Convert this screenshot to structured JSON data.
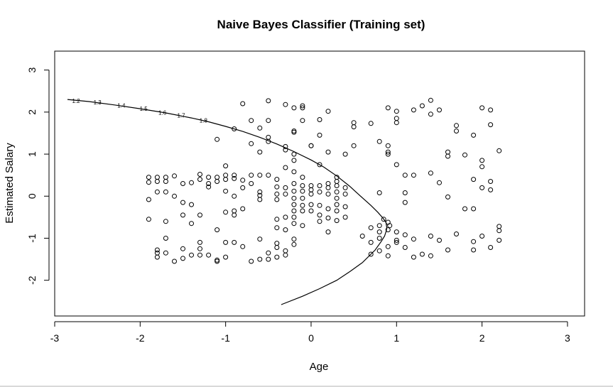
{
  "chart_data": {
    "type": "scatter",
    "title": "Naive Bayes  Classifier (Training set)",
    "xlabel": "Age",
    "ylabel": "Estimated Salary",
    "xlim": [
      -3.0,
      3.2
    ],
    "ylim": [
      -2.85,
      3.45
    ],
    "xticks": [
      -3,
      -2,
      -1,
      0,
      1,
      2,
      3
    ],
    "yticks": [
      -2,
      -1,
      0,
      1,
      2,
      3
    ],
    "grid": false,
    "legend": "none",
    "colors": {
      "points": "#000000",
      "contour": "#000000",
      "axis": "#000000"
    },
    "points": [
      [
        -1.9,
        0.45
      ],
      [
        -1.9,
        0.33
      ],
      [
        -1.8,
        0.45
      ],
      [
        -1.8,
        0.35
      ],
      [
        -1.7,
        0.45
      ],
      [
        -1.7,
        0.35
      ],
      [
        -1.6,
        0.48
      ],
      [
        -1.5,
        0.3
      ],
      [
        -1.4,
        0.32
      ],
      [
        -1.3,
        0.52
      ],
      [
        -1.3,
        0.4
      ],
      [
        -1.2,
        0.45
      ],
      [
        -1.2,
        0.3
      ],
      [
        -1.1,
        0.45
      ],
      [
        -1.1,
        0.35
      ],
      [
        -1.0,
        0.72
      ],
      [
        -1.0,
        0.5
      ],
      [
        -1.0,
        0.4
      ],
      [
        -0.9,
        0.5
      ],
      [
        -0.9,
        0.42
      ],
      [
        -0.8,
        0.38
      ],
      [
        -0.7,
        0.5
      ],
      [
        -0.6,
        0.5
      ],
      [
        -1.9,
        -0.08
      ],
      [
        -1.8,
        0.1
      ],
      [
        -1.7,
        0.1
      ],
      [
        -1.6,
        0.0
      ],
      [
        -1.5,
        -0.15
      ],
      [
        -1.4,
        -0.2
      ],
      [
        -1.2,
        0.22
      ],
      [
        -1.0,
        0.12
      ],
      [
        -0.9,
        0.0
      ],
      [
        -0.8,
        0.2
      ],
      [
        -0.7,
        0.3
      ],
      [
        -0.6,
        0.1
      ],
      [
        -0.6,
        0.02
      ],
      [
        -0.6,
        -0.08
      ],
      [
        -0.5,
        0.5
      ],
      [
        -1.9,
        -0.55
      ],
      [
        -1.7,
        -0.6
      ],
      [
        -1.5,
        -0.45
      ],
      [
        -1.4,
        -0.65
      ],
      [
        -1.3,
        -0.45
      ],
      [
        -1.0,
        -0.38
      ],
      [
        -0.9,
        -0.35
      ],
      [
        -0.9,
        -0.45
      ],
      [
        -0.8,
        -0.3
      ],
      [
        -1.8,
        -1.28
      ],
      [
        -1.8,
        -1.35
      ],
      [
        -1.8,
        -1.45
      ],
      [
        -1.7,
        -1.35
      ],
      [
        -1.6,
        -1.55
      ],
      [
        -1.5,
        -1.25
      ],
      [
        -1.5,
        -1.48
      ],
      [
        -1.4,
        -1.4
      ],
      [
        -1.3,
        -1.1
      ],
      [
        -1.3,
        -1.25
      ],
      [
        -1.3,
        -1.4
      ],
      [
        -1.2,
        -1.4
      ],
      [
        -1.1,
        -1.52
      ],
      [
        -1.1,
        -1.55
      ],
      [
        -1.0,
        -1.1
      ],
      [
        -1.0,
        -1.45
      ],
      [
        -0.9,
        -1.1
      ],
      [
        -0.8,
        -1.2
      ],
      [
        -0.7,
        -1.55
      ],
      [
        -0.6,
        -1.5
      ],
      [
        -0.5,
        -1.5
      ],
      [
        -1.7,
        -1.0
      ],
      [
        -1.1,
        -0.8
      ],
      [
        -0.6,
        -1.02
      ],
      [
        -0.8,
        2.2
      ],
      [
        -0.7,
        1.8
      ],
      [
        -0.6,
        1.62
      ],
      [
        -0.5,
        2.27
      ],
      [
        -0.5,
        1.8
      ],
      [
        -0.7,
        1.25
      ],
      [
        -0.6,
        1.05
      ],
      [
        -0.5,
        1.4
      ],
      [
        -0.5,
        1.3
      ],
      [
        -0.3,
        2.18
      ],
      [
        -0.2,
        2.1
      ],
      [
        -0.1,
        2.15
      ],
      [
        -0.1,
        2.1
      ],
      [
        -0.2,
        1.55
      ],
      [
        -0.2,
        1.52
      ],
      [
        -0.1,
        1.8
      ],
      [
        0.0,
        1.2
      ],
      [
        0.0,
        1.2
      ],
      [
        0.1,
        1.82
      ],
      [
        0.1,
        1.45
      ],
      [
        0.2,
        2.02
      ],
      [
        0.1,
        0.75
      ],
      [
        0.2,
        1.05
      ],
      [
        0.4,
        1.0
      ],
      [
        0.5,
        1.2
      ],
      [
        0.5,
        1.75
      ],
      [
        0.5,
        1.65
      ],
      [
        0.7,
        1.73
      ],
      [
        -0.9,
        1.6
      ],
      [
        -1.1,
        1.35
      ],
      [
        -0.3,
        1.18
      ],
      [
        -0.3,
        1.1
      ],
      [
        -0.2,
        1.0
      ],
      [
        -0.2,
        0.85
      ],
      [
        -0.2,
        0.58
      ],
      [
        -0.3,
        0.68
      ],
      [
        -0.4,
        0.4
      ],
      [
        -0.4,
        0.22
      ],
      [
        -0.4,
        0.05
      ],
      [
        -0.4,
        -0.08
      ],
      [
        -0.3,
        0.2
      ],
      [
        -0.3,
        0.05
      ],
      [
        -0.2,
        0.3
      ],
      [
        -0.2,
        0.12
      ],
      [
        -0.2,
        -0.05
      ],
      [
        -0.1,
        0.45
      ],
      [
        -0.1,
        0.25
      ],
      [
        -0.1,
        0.12
      ],
      [
        0.0,
        0.25
      ],
      [
        0.0,
        0.15
      ],
      [
        0.0,
        0.05
      ],
      [
        -0.1,
        -0.05
      ],
      [
        0.1,
        0.25
      ],
      [
        0.1,
        0.1
      ],
      [
        0.2,
        0.3
      ],
      [
        0.2,
        0.2
      ],
      [
        0.2,
        0.05
      ],
      [
        0.3,
        0.45
      ],
      [
        0.3,
        0.35
      ],
      [
        0.3,
        0.25
      ],
      [
        0.3,
        0.1
      ],
      [
        0.3,
        -0.05
      ],
      [
        0.4,
        0.2
      ],
      [
        0.4,
        0.05
      ],
      [
        -0.2,
        -0.2
      ],
      [
        -0.2,
        -0.35
      ],
      [
        -0.2,
        -0.5
      ],
      [
        -0.1,
        -0.22
      ],
      [
        -0.1,
        -0.35
      ],
      [
        0.0,
        -0.2
      ],
      [
        0.0,
        -0.35
      ],
      [
        0.1,
        -0.22
      ],
      [
        0.1,
        -0.45
      ],
      [
        0.2,
        -0.3
      ],
      [
        0.2,
        -0.52
      ],
      [
        0.3,
        -0.2
      ],
      [
        0.3,
        -0.35
      ],
      [
        0.3,
        -0.58
      ],
      [
        0.4,
        -0.25
      ],
      [
        0.4,
        -0.5
      ],
      [
        -0.3,
        -0.5
      ],
      [
        -0.4,
        -0.55
      ],
      [
        -0.4,
        -0.75
      ],
      [
        -0.3,
        -0.8
      ],
      [
        -0.2,
        -0.65
      ],
      [
        -0.1,
        -0.7
      ],
      [
        0.1,
        -0.6
      ],
      [
        0.2,
        -0.85
      ],
      [
        -0.2,
        -1.02
      ],
      [
        -0.2,
        -1.15
      ],
      [
        -0.3,
        -1.3
      ],
      [
        -0.4,
        -1.12
      ],
      [
        -0.4,
        -1.22
      ],
      [
        -0.5,
        -1.35
      ],
      [
        -0.4,
        -1.45
      ],
      [
        -0.3,
        -1.4
      ],
      [
        0.6,
        -0.95
      ],
      [
        0.7,
        -1.1
      ],
      [
        0.7,
        -1.38
      ],
      [
        0.8,
        -0.85
      ],
      [
        0.8,
        -1.0
      ],
      [
        0.8,
        -1.3
      ],
      [
        0.9,
        -0.62
      ],
      [
        0.9,
        -0.8
      ],
      [
        0.9,
        -1.2
      ],
      [
        0.9,
        -1.42
      ],
      [
        0.8,
        -0.7
      ],
      [
        0.7,
        -0.75
      ],
      [
        0.85,
        -0.55
      ],
      [
        0.92,
        -0.7
      ],
      [
        0.9,
        2.1
      ],
      [
        1.0,
        2.02
      ],
      [
        1.0,
        1.85
      ],
      [
        1.0,
        1.75
      ],
      [
        1.2,
        2.05
      ],
      [
        1.3,
        2.15
      ],
      [
        1.4,
        2.28
      ],
      [
        1.5,
        2.05
      ],
      [
        1.4,
        1.95
      ],
      [
        1.7,
        1.68
      ],
      [
        1.7,
        1.55
      ],
      [
        1.9,
        1.45
      ],
      [
        2.0,
        2.1
      ],
      [
        2.1,
        2.05
      ],
      [
        2.1,
        1.7
      ],
      [
        0.8,
        1.3
      ],
      [
        0.9,
        1.2
      ],
      [
        0.9,
        1.0
      ],
      [
        0.9,
        1.05
      ],
      [
        1.0,
        0.75
      ],
      [
        1.1,
        0.5
      ],
      [
        1.2,
        0.5
      ],
      [
        1.4,
        0.55
      ],
      [
        1.5,
        0.32
      ],
      [
        1.6,
        1.05
      ],
      [
        1.6,
        0.95
      ],
      [
        1.8,
        0.98
      ],
      [
        1.9,
        0.4
      ],
      [
        2.0,
        0.85
      ],
      [
        2.0,
        0.7
      ],
      [
        2.1,
        0.35
      ],
      [
        2.1,
        0.15
      ],
      [
        2.2,
        1.08
      ],
      [
        2.0,
        0.2
      ],
      [
        0.8,
        0.08
      ],
      [
        1.1,
        0.08
      ],
      [
        1.1,
        -0.15
      ],
      [
        1.6,
        -0.02
      ],
      [
        1.8,
        -0.3
      ],
      [
        1.9,
        -0.3
      ],
      [
        2.2,
        -0.72
      ],
      [
        2.2,
        -0.82
      ],
      [
        2.2,
        -1.05
      ],
      [
        2.1,
        -1.22
      ],
      [
        2.0,
        -0.95
      ],
      [
        1.9,
        -1.08
      ],
      [
        1.9,
        -1.28
      ],
      [
        1.7,
        -0.9
      ],
      [
        1.6,
        -1.28
      ],
      [
        1.5,
        -1.05
      ],
      [
        1.4,
        -0.95
      ],
      [
        1.4,
        -1.42
      ],
      [
        1.3,
        -1.38
      ],
      [
        1.2,
        -1.45
      ],
      [
        1.1,
        -0.92
      ],
      [
        1.1,
        -1.22
      ],
      [
        1.2,
        -1.02
      ],
      [
        1.0,
        -0.85
      ],
      [
        1.0,
        -1.05
      ],
      [
        1.0,
        -1.1
      ]
    ],
    "contour": {
      "x": [
        -2.85,
        -2.6,
        -2.3,
        -2.0,
        -1.7,
        -1.4,
        -1.2,
        -1.0,
        -0.8,
        -0.6,
        -0.4,
        -0.2,
        0.0,
        0.15,
        0.3,
        0.45,
        0.6,
        0.7,
        0.78,
        0.84,
        0.875,
        0.885,
        0.88,
        0.86,
        0.82,
        0.75,
        0.6,
        0.45,
        0.3,
        0.1,
        -0.1,
        -0.35
      ],
      "y": [
        2.3,
        2.25,
        2.17,
        2.08,
        1.98,
        1.86,
        1.77,
        1.66,
        1.54,
        1.4,
        1.24,
        1.06,
        0.86,
        0.69,
        0.48,
        0.24,
        -0.04,
        -0.22,
        -0.38,
        -0.52,
        -0.62,
        -0.74,
        -0.82,
        -0.95,
        -1.08,
        -1.28,
        -1.58,
        -1.8,
        -2.0,
        -2.2,
        -2.38,
        -2.58
      ]
    },
    "contour_labels": [
      {
        "text": "1.2",
        "x": -2.75,
        "y": 2.27
      },
      {
        "text": "1.3",
        "x": -2.5,
        "y": 2.23
      },
      {
        "text": "1.4",
        "x": -2.22,
        "y": 2.16
      },
      {
        "text": "1.5",
        "x": -1.96,
        "y": 2.08
      },
      {
        "text": "1.6",
        "x": -1.74,
        "y": 1.99
      },
      {
        "text": "1.7",
        "x": -1.52,
        "y": 1.92
      },
      {
        "text": "1.8",
        "x": -1.26,
        "y": 1.8
      }
    ]
  }
}
